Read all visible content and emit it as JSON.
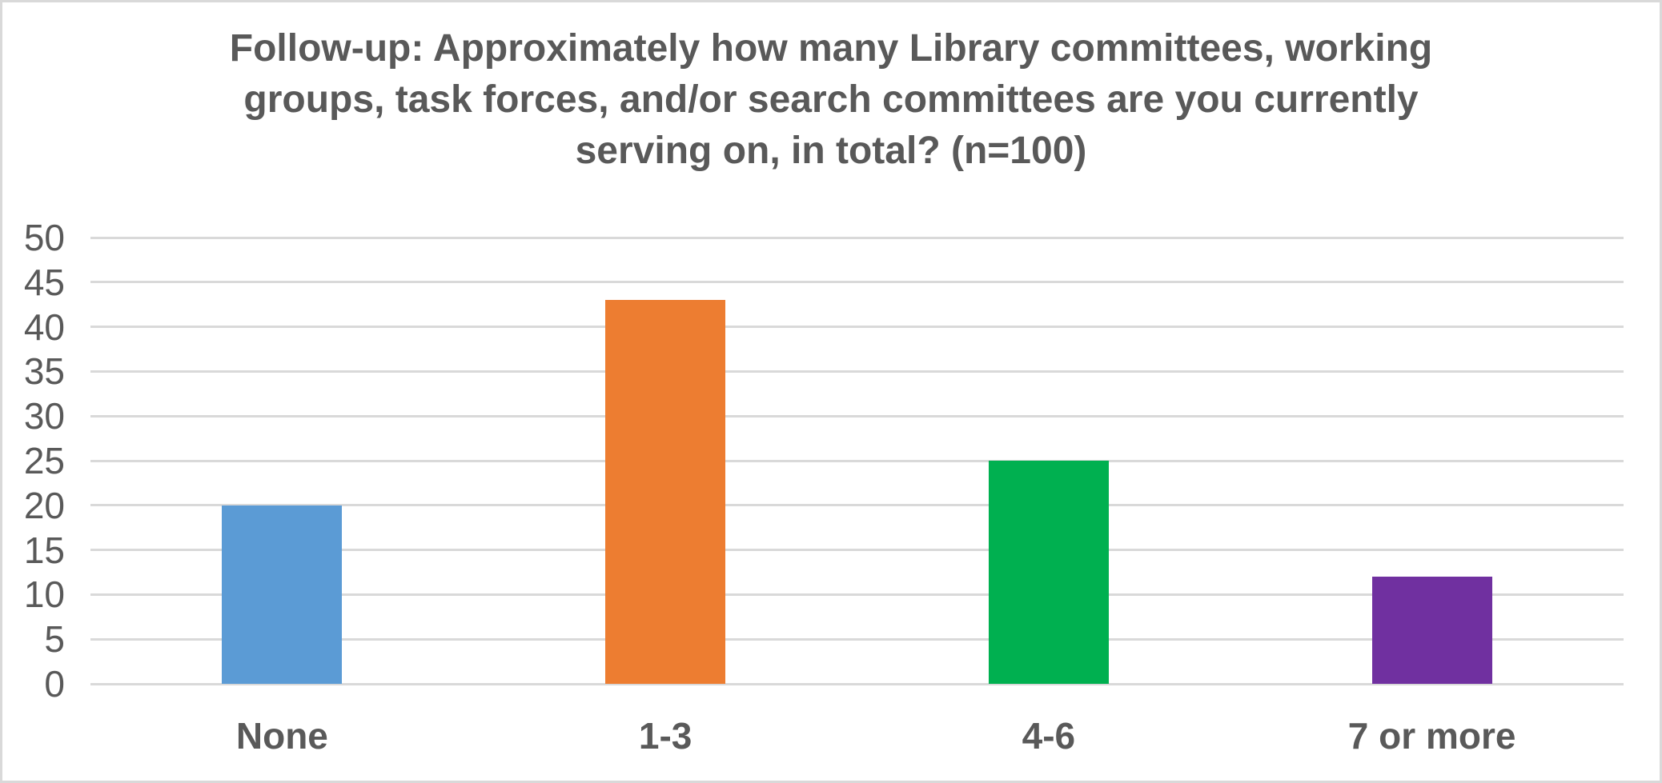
{
  "chart_data": {
    "type": "bar",
    "title": "Follow-up: Approximately how many Library committees, working groups, task forces, and/or search committees are you currently serving on, in total? (n=100)",
    "title_lines": [
      "Follow-up: Approximately how many Library committees, working",
      "groups, task forces, and/or search committees are you currently",
      "serving on, in total? (n=100)"
    ],
    "categories": [
      "None",
      "1-3",
      "4-6",
      "7 or more"
    ],
    "values": [
      20,
      43,
      25,
      12
    ],
    "bar_colors": [
      "#5B9BD5",
      "#ED7D31",
      "#00B050",
      "#7030A0"
    ],
    "xlabel": "",
    "ylabel": "",
    "ylim": [
      0,
      50
    ],
    "y_ticks": [
      0,
      5,
      10,
      15,
      20,
      25,
      30,
      35,
      40,
      45,
      50
    ],
    "grid": "horizontal",
    "legend": "none",
    "text_color": "#595959",
    "gridline_color": "#D9D9D9",
    "background_color": "#FFFFFF",
    "border_color": "#D9D9D9"
  }
}
